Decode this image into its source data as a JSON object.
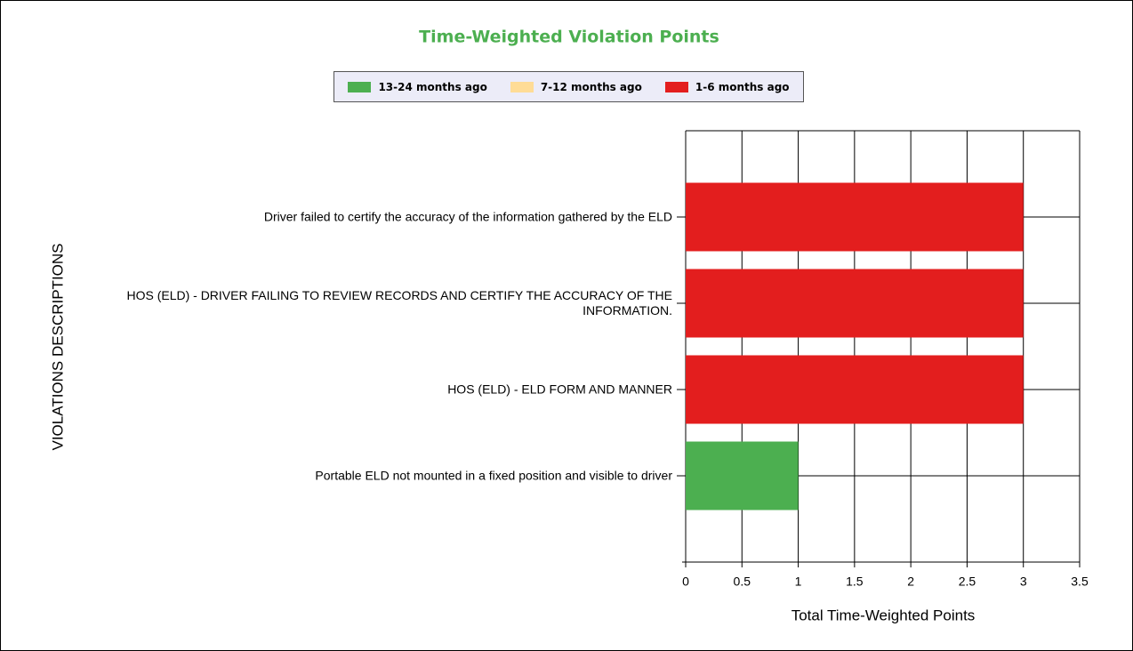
{
  "chart_data": {
    "type": "stacked-bar-horizontal",
    "title": "Time-Weighted Violation Points",
    "y_label": "VIOLATIONS DESCRIPTIONS",
    "x_label": "Total Time-Weighted Points",
    "categories": [
      "Driver failed to certify the accuracy of the information gathered by the ELD",
      "HOS (ELD) - DRIVER FAILING TO REVIEW RECORDS AND CERTIFY THE ACCURACY OF THE INFORMATION.",
      "HOS (ELD) - ELD FORM AND MANNER",
      "Portable ELD not mounted in a fixed position and visible to driver"
    ],
    "series": [
      {
        "name": "13-24 months ago",
        "color": "#4caf50",
        "values": [
          0,
          0,
          0,
          1
        ]
      },
      {
        "name": "7-12 months ago",
        "color": "#ffdc96",
        "values": [
          0,
          0,
          0,
          0
        ]
      },
      {
        "name": "1-6 months ago",
        "color": "#e31e1e",
        "values": [
          3,
          3,
          3,
          0
        ]
      }
    ],
    "xlim": [
      0,
      3.5
    ],
    "xticks": [
      0,
      0.5,
      1,
      1.5,
      2,
      2.5,
      3,
      3.5
    ],
    "grid": true,
    "legend": "top"
  }
}
